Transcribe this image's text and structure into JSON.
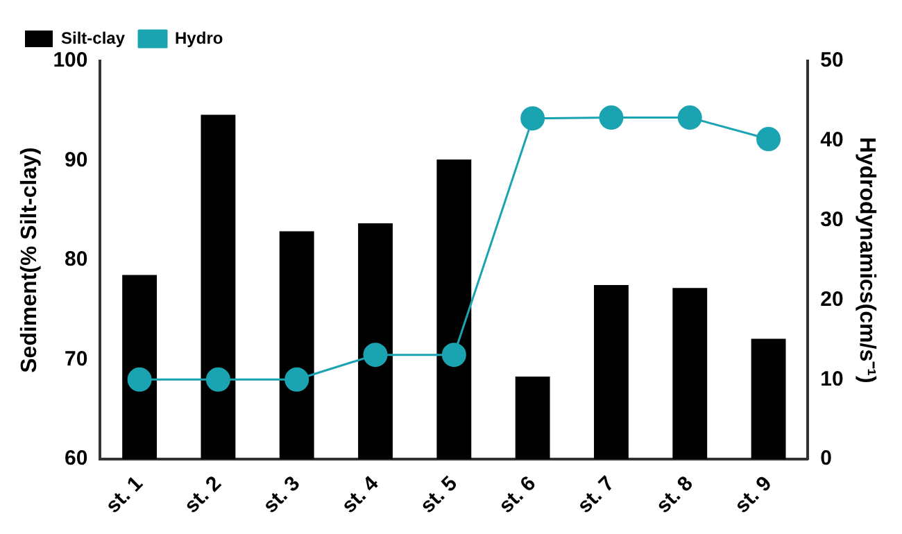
{
  "chart_data": {
    "type": "bar",
    "categories": [
      "st. 1",
      "st. 2",
      "st. 3",
      "st. 4",
      "st. 5",
      "st. 6",
      "st. 7",
      "st. 8",
      "st. 9"
    ],
    "ylabel": "Sediment(% Silt-clay)",
    "y2label": "Hydrodynamics(cm/s⁻¹)",
    "series": [
      {
        "name": "Silt-clay",
        "color": "#000000",
        "values": [
          78.5,
          94.6,
          82.9,
          83.7,
          90.1,
          68.3,
          77.5,
          77.2,
          72.1
        ]
      },
      {
        "name": "Hydro",
        "type": "line",
        "axis": "y2",
        "color": "#1aa3b0",
        "marker": "circle",
        "values": [
          10,
          10,
          10,
          13.1,
          13.1,
          42.8,
          42.9,
          42.9,
          40.2
        ]
      }
    ],
    "ylim": [
      60,
      100
    ],
    "yticks": [
      60,
      70,
      80,
      90,
      100
    ],
    "y2lim": [
      0,
      50
    ],
    "y2ticks": [
      0,
      10,
      20,
      30,
      40,
      50
    ],
    "grid": false,
    "legend": "top left"
  }
}
